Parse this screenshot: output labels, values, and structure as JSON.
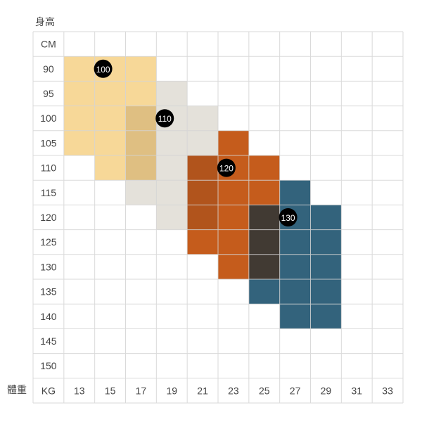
{
  "chart_data": {
    "type": "heatmap",
    "title": "",
    "ylabel": "身高",
    "xlabel": "體重",
    "y_unit": "CM",
    "x_unit": "KG",
    "y_ticks": [
      90,
      95,
      100,
      105,
      110,
      115,
      120,
      125,
      130,
      135,
      140,
      145,
      150
    ],
    "x_ticks": [
      13,
      15,
      17,
      19,
      21,
      23,
      25,
      27,
      29,
      31,
      33
    ],
    "sizes": [
      {
        "label": "100",
        "color": "#f7d898",
        "badge_at": {
          "kg": 15,
          "cm": 90
        },
        "cells": [
          {
            "kg": [
              13,
              17
            ],
            "cm": [
              90,
              105
            ]
          },
          {
            "kg": [
              15,
              17
            ],
            "cm": [
              110,
              110
            ]
          }
        ]
      },
      {
        "label": "110",
        "color": "#e4e1da",
        "badge_at": {
          "kg": 19,
          "cm": 100
        },
        "cells": [
          {
            "kg": [
              17,
              17
            ],
            "cm": [
              100,
              115
            ]
          },
          {
            "kg": [
              19,
              19
            ],
            "cm": [
              95,
              120
            ]
          },
          {
            "kg": [
              21,
              21
            ],
            "cm": [
              100,
              120
            ]
          }
        ]
      },
      {
        "label": "120",
        "color": "#c55c1c",
        "badge_at": {
          "kg": 23,
          "cm": 110
        },
        "cells": [
          {
            "kg": [
              21,
              21
            ],
            "cm": [
              110,
              125
            ]
          },
          {
            "kg": [
              23,
              23
            ],
            "cm": [
              105,
              130
            ]
          },
          {
            "kg": [
              25,
              25
            ],
            "cm": [
              110,
              130
            ]
          }
        ]
      },
      {
        "label": "130",
        "color": "#33637c",
        "badge_at": {
          "kg": 27,
          "cm": 120
        },
        "cells": [
          {
            "kg": [
              25,
              25
            ],
            "cm": [
              120,
              135
            ]
          },
          {
            "kg": [
              27,
              27
            ],
            "cm": [
              115,
              140
            ]
          },
          {
            "kg": [
              29,
              29
            ],
            "cm": [
              120,
              140
            ]
          }
        ]
      }
    ],
    "overlaps": [
      {
        "sizes": [
          "100",
          "110"
        ],
        "color": "#dfbf82"
      },
      {
        "sizes": [
          "110",
          "120"
        ],
        "color": "#b1541c"
      },
      {
        "sizes": [
          "120",
          "130"
        ],
        "color": "#413a33"
      }
    ],
    "grid": true,
    "grid_color": "#d4d4d4",
    "badge_color": "#000000"
  }
}
